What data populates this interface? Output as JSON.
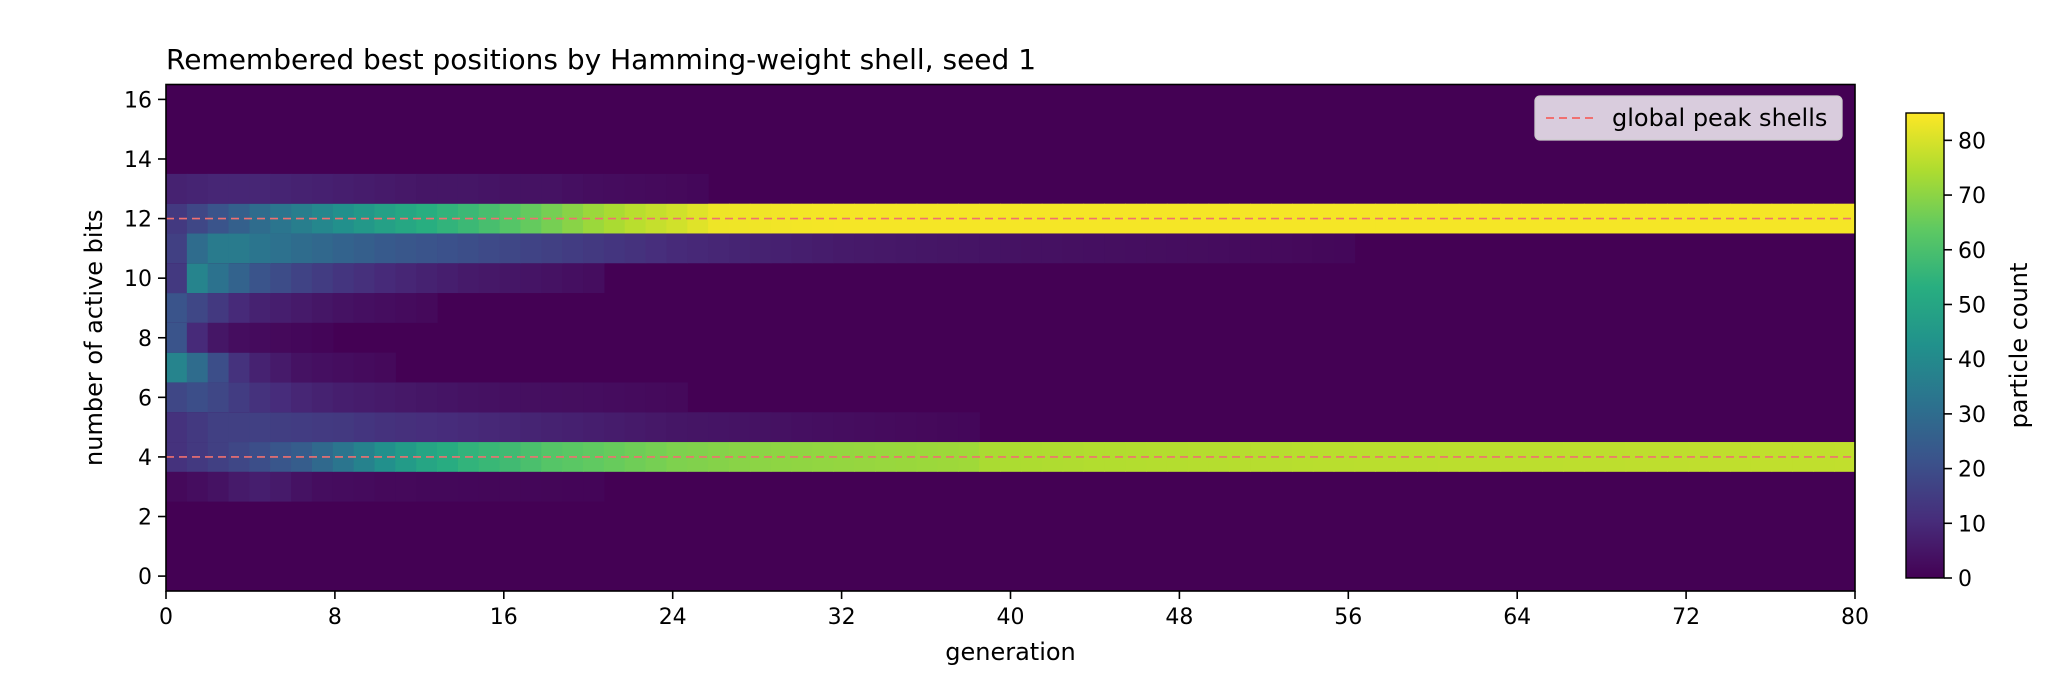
{
  "chart_data": {
    "type": "heatmap",
    "title": "Remembered best positions by Hamming-weight shell, seed 1",
    "xlabel": "generation",
    "ylabel": "number of active bits",
    "xlim": [
      0,
      80
    ],
    "ylim": [
      -0.5,
      16.5
    ],
    "x_ticks": [
      0,
      8,
      16,
      24,
      32,
      40,
      48,
      56,
      64,
      72,
      80
    ],
    "y_ticks": [
      0,
      2,
      4,
      6,
      8,
      10,
      12,
      14,
      16
    ],
    "generations": 81,
    "shells": [
      0,
      1,
      2,
      3,
      4,
      5,
      6,
      7,
      8,
      9,
      10,
      11,
      12,
      13,
      14,
      15,
      16
    ],
    "colormap": "viridis",
    "colorbar": {
      "label": "particle count",
      "min": 0,
      "max": 85,
      "ticks": [
        0,
        10,
        20,
        30,
        40,
        50,
        60,
        70,
        80
      ]
    },
    "legend": {
      "position": "upper-right",
      "entries": [
        {
          "label": "global peak shells",
          "style": "dashed",
          "color": "#f07070",
          "y_values": [
            4,
            12
          ]
        }
      ]
    },
    "shell_profiles": [
      {
        "shell": 3,
        "points": [
          [
            0,
            2
          ],
          [
            1,
            3
          ],
          [
            2,
            4
          ],
          [
            3,
            6
          ],
          [
            4,
            7
          ],
          [
            5,
            6
          ],
          [
            6,
            4
          ],
          [
            7,
            3
          ],
          [
            10,
            2
          ],
          [
            14,
            1.5
          ],
          [
            20,
            1
          ],
          [
            21,
            0
          ]
        ]
      },
      {
        "shell": 4,
        "points": [
          [
            0,
            12
          ],
          [
            1,
            14
          ],
          [
            2,
            16
          ],
          [
            4,
            20
          ],
          [
            6,
            25
          ],
          [
            8,
            33
          ],
          [
            10,
            42
          ],
          [
            12,
            50
          ],
          [
            14,
            55
          ],
          [
            16,
            58
          ],
          [
            18,
            62
          ],
          [
            20,
            64
          ],
          [
            22,
            66
          ],
          [
            24,
            68
          ],
          [
            28,
            70
          ],
          [
            32,
            71
          ],
          [
            36,
            72
          ],
          [
            38,
            72.5
          ],
          [
            39,
            74
          ],
          [
            44,
            75
          ],
          [
            56,
            76
          ],
          [
            80,
            77
          ]
        ]
      },
      {
        "shell": 5,
        "points": [
          [
            0,
            12
          ],
          [
            1,
            14
          ],
          [
            2,
            16
          ],
          [
            4,
            16
          ],
          [
            6,
            15
          ],
          [
            8,
            14
          ],
          [
            10,
            12
          ],
          [
            12,
            11
          ],
          [
            14,
            10
          ],
          [
            16,
            9
          ],
          [
            18,
            8
          ],
          [
            20,
            7
          ],
          [
            24,
            5
          ],
          [
            28,
            4
          ],
          [
            32,
            3
          ],
          [
            36,
            2
          ],
          [
            38,
            1.5
          ],
          [
            39,
            0
          ]
        ]
      },
      {
        "shell": 6,
        "points": [
          [
            0,
            18
          ],
          [
            1,
            20
          ],
          [
            2,
            18
          ],
          [
            3,
            15
          ],
          [
            4,
            12
          ],
          [
            6,
            9
          ],
          [
            8,
            7
          ],
          [
            10,
            6
          ],
          [
            12,
            5
          ],
          [
            14,
            4
          ],
          [
            16,
            3.5
          ],
          [
            20,
            3
          ],
          [
            24,
            2
          ],
          [
            25,
            0
          ]
        ]
      },
      {
        "shell": 7,
        "points": [
          [
            0,
            38
          ],
          [
            1,
            30
          ],
          [
            2,
            20
          ],
          [
            3,
            12
          ],
          [
            4,
            8
          ],
          [
            6,
            4
          ],
          [
            8,
            3
          ],
          [
            10,
            2
          ],
          [
            11,
            0
          ]
        ]
      },
      {
        "shell": 8,
        "points": [
          [
            0,
            22
          ],
          [
            1,
            10
          ],
          [
            2,
            5
          ],
          [
            3,
            3
          ],
          [
            5,
            2
          ],
          [
            7,
            1
          ],
          [
            8,
            0
          ]
        ]
      },
      {
        "shell": 9,
        "points": [
          [
            0,
            22
          ],
          [
            1,
            18
          ],
          [
            2,
            14
          ],
          [
            3,
            10
          ],
          [
            4,
            8
          ],
          [
            6,
            6
          ],
          [
            8,
            4
          ],
          [
            10,
            3
          ],
          [
            12,
            2
          ],
          [
            13,
            0
          ]
        ]
      },
      {
        "shell": 10,
        "points": [
          [
            0,
            14
          ],
          [
            1,
            38
          ],
          [
            2,
            32
          ],
          [
            3,
            27
          ],
          [
            4,
            22
          ],
          [
            6,
            17
          ],
          [
            8,
            13
          ],
          [
            10,
            10
          ],
          [
            12,
            8
          ],
          [
            14,
            6
          ],
          [
            16,
            5
          ],
          [
            18,
            4
          ],
          [
            20,
            3
          ],
          [
            21,
            0
          ]
        ]
      },
      {
        "shell": 11,
        "points": [
          [
            0,
            16
          ],
          [
            1,
            30
          ],
          [
            2,
            35
          ],
          [
            3,
            35
          ],
          [
            4,
            33
          ],
          [
            6,
            30
          ],
          [
            8,
            27
          ],
          [
            10,
            24
          ],
          [
            12,
            22
          ],
          [
            14,
            20
          ],
          [
            16,
            18
          ],
          [
            20,
            14
          ],
          [
            24,
            10
          ],
          [
            28,
            8
          ],
          [
            32,
            6
          ],
          [
            40,
            4
          ],
          [
            48,
            3
          ],
          [
            56,
            1.5
          ],
          [
            57,
            0
          ]
        ]
      },
      {
        "shell": 12,
        "points": [
          [
            0,
            14
          ],
          [
            1,
            18
          ],
          [
            2,
            22
          ],
          [
            4,
            30
          ],
          [
            6,
            36
          ],
          [
            8,
            42
          ],
          [
            10,
            48
          ],
          [
            12,
            53
          ],
          [
            14,
            57
          ],
          [
            16,
            62
          ],
          [
            18,
            67
          ],
          [
            20,
            72
          ],
          [
            22,
            76
          ],
          [
            24,
            79
          ],
          [
            25,
            81
          ],
          [
            26,
            83
          ],
          [
            32,
            84
          ],
          [
            80,
            84
          ]
        ]
      },
      {
        "shell": 13,
        "points": [
          [
            0,
            8
          ],
          [
            2,
            9
          ],
          [
            4,
            9
          ],
          [
            6,
            8
          ],
          [
            8,
            7
          ],
          [
            10,
            6
          ],
          [
            12,
            5
          ],
          [
            14,
            5
          ],
          [
            16,
            4
          ],
          [
            18,
            4
          ],
          [
            20,
            3
          ],
          [
            24,
            2
          ],
          [
            25,
            1.5
          ],
          [
            26,
            0
          ]
        ]
      }
    ]
  }
}
